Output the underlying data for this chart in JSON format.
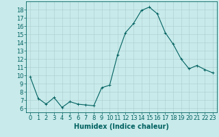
{
  "x": [
    0,
    1,
    2,
    3,
    4,
    5,
    6,
    7,
    8,
    9,
    10,
    11,
    12,
    13,
    14,
    15,
    16,
    17,
    18,
    19,
    20,
    21,
    22,
    23
  ],
  "y": [
    9.8,
    7.2,
    6.5,
    7.3,
    6.1,
    6.8,
    6.5,
    6.4,
    6.3,
    8.5,
    8.8,
    12.5,
    15.2,
    16.3,
    17.9,
    18.3,
    17.5,
    15.2,
    13.8,
    12.0,
    10.8,
    11.2,
    10.7,
    10.3
  ],
  "line_color": "#006060",
  "marker": "+",
  "marker_color": "#006060",
  "bg_color": "#c8eaea",
  "grid_color": "#aacccc",
  "xlabel": "Humidex (Indice chaleur)",
  "xlim": [
    -0.5,
    23.5
  ],
  "ylim": [
    5.5,
    19.0
  ],
  "yticks": [
    6,
    7,
    8,
    9,
    10,
    11,
    12,
    13,
    14,
    15,
    16,
    17,
    18
  ],
  "xticks": [
    0,
    1,
    2,
    3,
    4,
    5,
    6,
    7,
    8,
    9,
    10,
    11,
    12,
    13,
    14,
    15,
    16,
    17,
    18,
    19,
    20,
    21,
    22,
    23
  ],
  "xlabel_fontsize": 7,
  "tick_fontsize": 6,
  "axis_color": "#006060",
  "linewidth": 0.8,
  "markersize": 3
}
